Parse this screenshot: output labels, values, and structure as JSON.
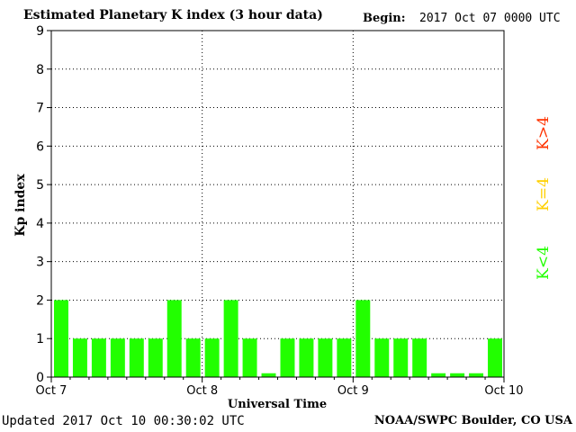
{
  "header": {
    "title": "Estimated Planetary K index (3 hour data)",
    "begin_label": "Begin:",
    "begin_value": "2017 Oct 07 0000 UTC"
  },
  "footer": {
    "updated": "Updated 2017 Oct 10 00:30:02 UTC",
    "source": "NOAA/SWPC Boulder, CO USA"
  },
  "colors": {
    "below_storm": "#22ff00",
    "storm_threshold": "#ffd000",
    "storm": "#ff3300",
    "grid": "#000000"
  },
  "legend": [
    {
      "label": "K>4",
      "color": "#ff3300"
    },
    {
      "label": "K=4",
      "color": "#ffd000"
    },
    {
      "label": "K<4",
      "color": "#22ff00"
    }
  ],
  "chart_data": {
    "type": "bar",
    "title": "Estimated Planetary K index (3 hour data)",
    "xlabel": "Universal Time",
    "ylabel": "Kp index",
    "ylim": [
      0,
      9
    ],
    "yticks": [
      "0",
      "1",
      "2",
      "3",
      "4",
      "5",
      "6",
      "7",
      "8",
      "9"
    ],
    "x_tick_labels": [
      "Oct 7",
      "Oct 8",
      "Oct 9",
      "Oct 10"
    ],
    "grid": true,
    "legend_placement": "right",
    "categories": [
      "Oct 7 00",
      "Oct 7 03",
      "Oct 7 06",
      "Oct 7 09",
      "Oct 7 12",
      "Oct 7 15",
      "Oct 7 18",
      "Oct 7 21",
      "Oct 8 00",
      "Oct 8 03",
      "Oct 8 06",
      "Oct 8 09",
      "Oct 8 12",
      "Oct 8 15",
      "Oct 8 18",
      "Oct 8 21",
      "Oct 9 00",
      "Oct 9 03",
      "Oct 9 06",
      "Oct 9 09",
      "Oct 9 12",
      "Oct 9 15",
      "Oct 9 18",
      "Oct 9 21"
    ],
    "values": [
      2,
      1,
      1,
      1,
      1,
      1,
      2,
      1,
      1,
      2,
      1,
      0.1,
      1,
      1,
      1,
      1,
      2,
      1,
      1,
      1,
      0.1,
      0.1,
      0.1,
      1
    ]
  }
}
